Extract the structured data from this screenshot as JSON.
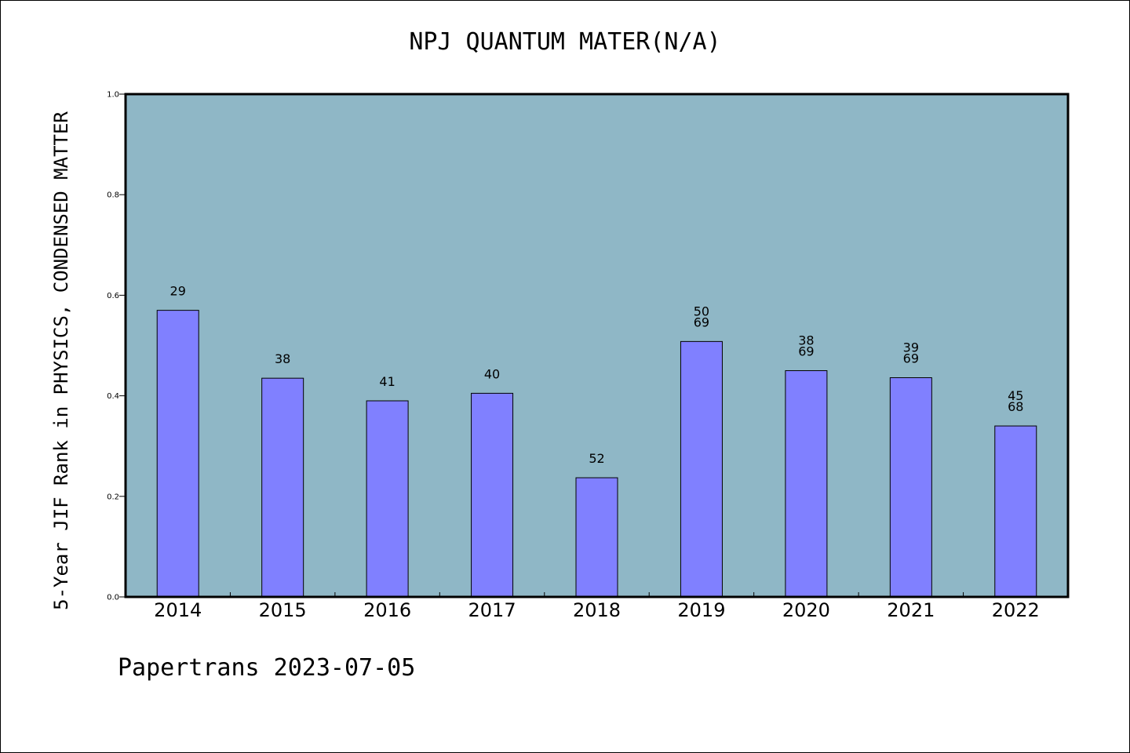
{
  "chart_data": {
    "type": "bar",
    "title": "NPJ QUANTUM MATER(N/A)",
    "ylabel": "5-Year JIF Rank in PHYSICS, CONDENSED MATTER",
    "xlabel": "",
    "ylim": [
      0,
      1.0
    ],
    "yticks": [
      "0.0",
      "0.2",
      "0.4",
      "0.6",
      "0.8",
      "1.0"
    ],
    "categories": [
      "2014",
      "2015",
      "2016",
      "2017",
      "2018",
      "2019",
      "2020",
      "2021",
      "2022"
    ],
    "values": [
      0.57,
      0.435,
      0.39,
      0.405,
      0.237,
      0.508,
      0.45,
      0.436,
      0.34
    ],
    "bar_labels": [
      [
        "29"
      ],
      [
        "38"
      ],
      [
        "41"
      ],
      [
        "40"
      ],
      [
        "52"
      ],
      [
        "50",
        "69"
      ],
      [
        "38",
        "69"
      ],
      [
        "39",
        "69"
      ],
      [
        "45",
        "68"
      ]
    ],
    "grid": false,
    "colors": {
      "plot_bg": "#8fb7c6",
      "bar": "#8080ff",
      "bar_edge": "#000000"
    }
  },
  "footer": {
    "text": "Papertrans 2023-07-05"
  }
}
